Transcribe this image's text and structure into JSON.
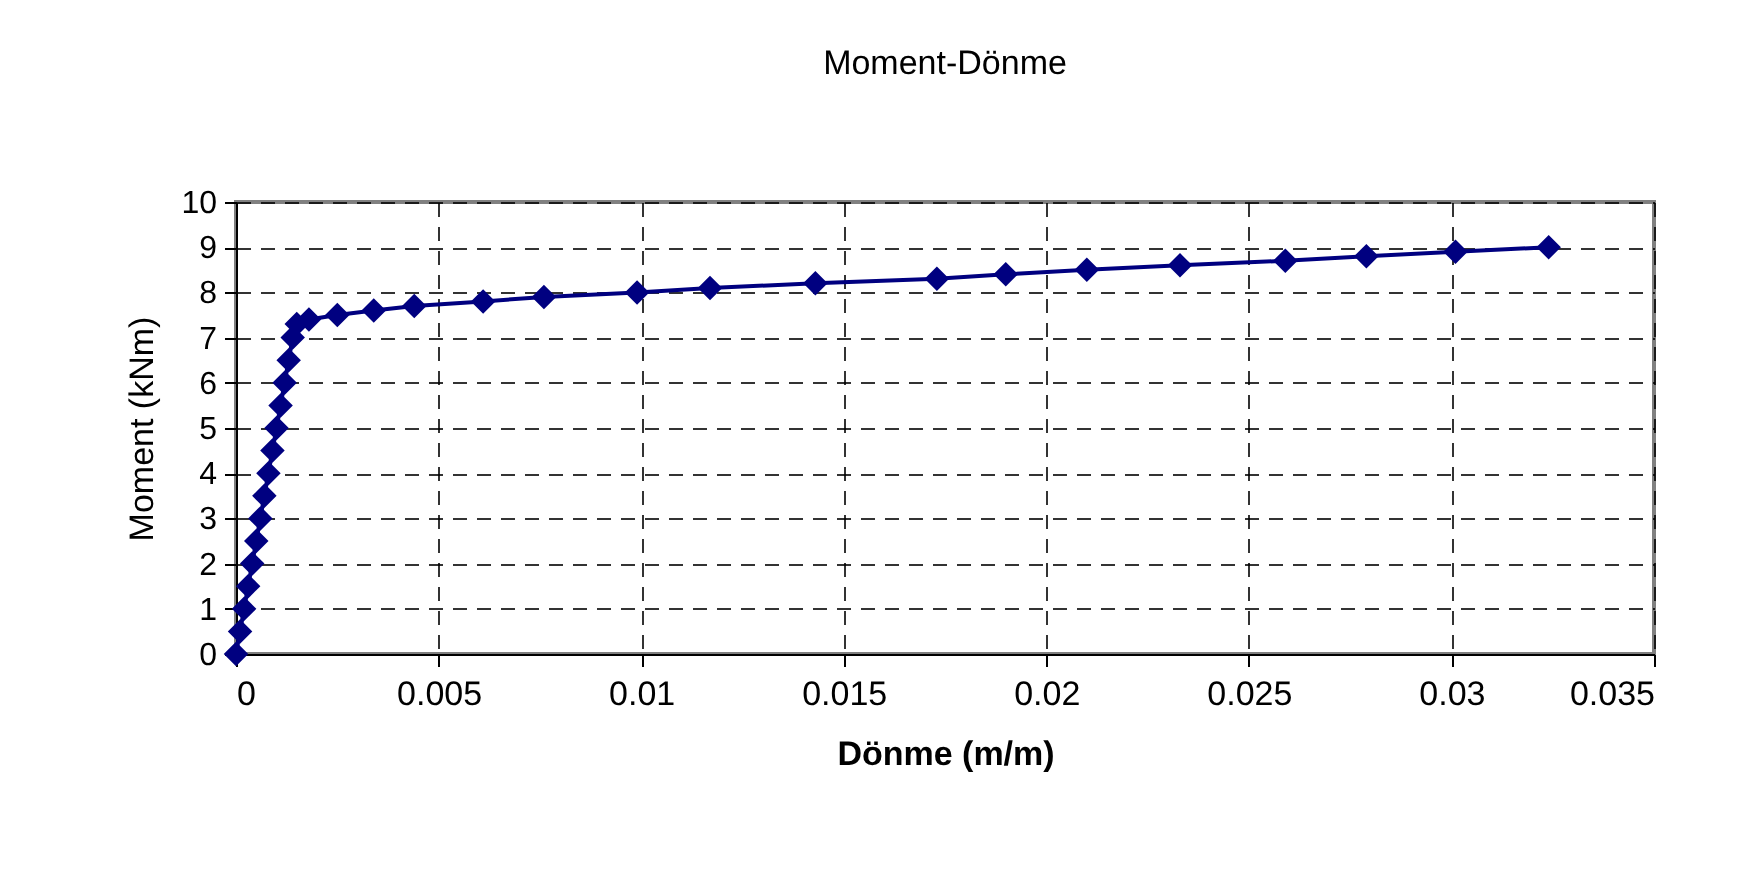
{
  "chart_data": {
    "type": "line",
    "title": "Moment-Dönme",
    "xlabel": "Dönme (m/m)",
    "ylabel": "Moment (kNm)",
    "x": [
      0,
      0.0001,
      0.0002,
      0.0003,
      0.0004,
      0.0005,
      0.0006,
      0.0007,
      0.0008,
      0.0009,
      0.001,
      0.0011,
      0.0012,
      0.0013,
      0.0014,
      0.0015,
      0.0018,
      0.0025,
      0.0034,
      0.0044,
      0.0061,
      0.0076,
      0.0099,
      0.0117,
      0.0143,
      0.0173,
      0.019,
      0.021,
      0.0233,
      0.0259,
      0.0279,
      0.0301,
      0.0324
    ],
    "series": [
      {
        "color": "#000080",
        "values": [
          0,
          0.5,
          1,
          1.5,
          2,
          2.5,
          3,
          3.5,
          4,
          4.5,
          5,
          5.5,
          6,
          6.5,
          7,
          7.3,
          7.4,
          7.5,
          7.6,
          7.7,
          7.8,
          7.9,
          8,
          8.1,
          8.2,
          8.3,
          8.4,
          8.5,
          8.6,
          8.7,
          8.8,
          8.9,
          9
        ]
      }
    ],
    "xlim": [
      0,
      0.035
    ],
    "xticks": [
      0,
      0.005,
      0.01,
      0.015,
      0.02,
      0.025,
      0.03,
      0.035
    ],
    "ylim": [
      0,
      10
    ],
    "yticks": [
      0,
      1,
      2,
      3,
      4,
      5,
      6,
      7,
      8,
      9,
      10
    ],
    "grid": true,
    "marker": "diamond",
    "line_style": "solid",
    "legend": false
  }
}
